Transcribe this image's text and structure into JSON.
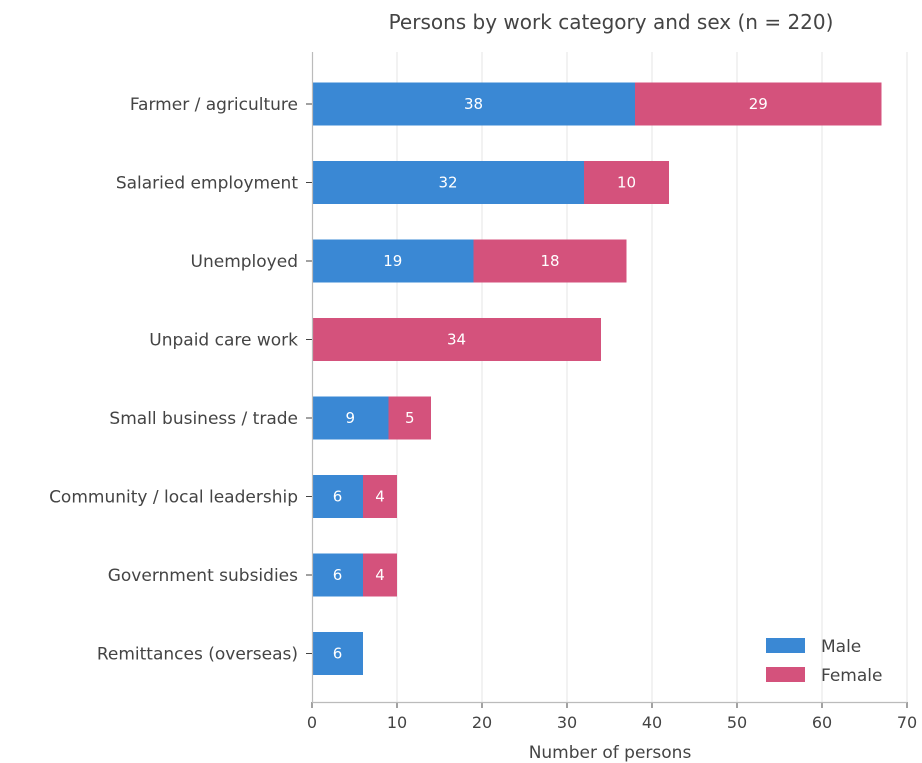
{
  "chart_data": {
    "type": "bar",
    "orientation": "horizontal",
    "stacked": true,
    "title": "Persons by work category and sex (n = 220)",
    "xlabel": "Number of persons",
    "ylabel": "",
    "xlim": [
      0,
      70
    ],
    "xticks": [
      "0",
      "10",
      "20",
      "30",
      "40",
      "50",
      "60",
      "70"
    ],
    "grid": "vertical",
    "legend_position": "bottom-right",
    "categories": [
      "Farmer / agriculture",
      "Salaried employment",
      "Unemployed",
      "Unpaid care work",
      "Small business / trade",
      "Community / local leadership",
      "Government subsidies",
      "Remittances (overseas)"
    ],
    "series": [
      {
        "name": "Male",
        "color": "#3a88d4",
        "values": [
          38,
          32,
          19,
          0,
          9,
          6,
          6,
          6
        ]
      },
      {
        "name": "Female",
        "color": "#d4527c",
        "values": [
          29,
          10,
          18,
          34,
          5,
          4,
          4,
          0
        ]
      }
    ]
  }
}
